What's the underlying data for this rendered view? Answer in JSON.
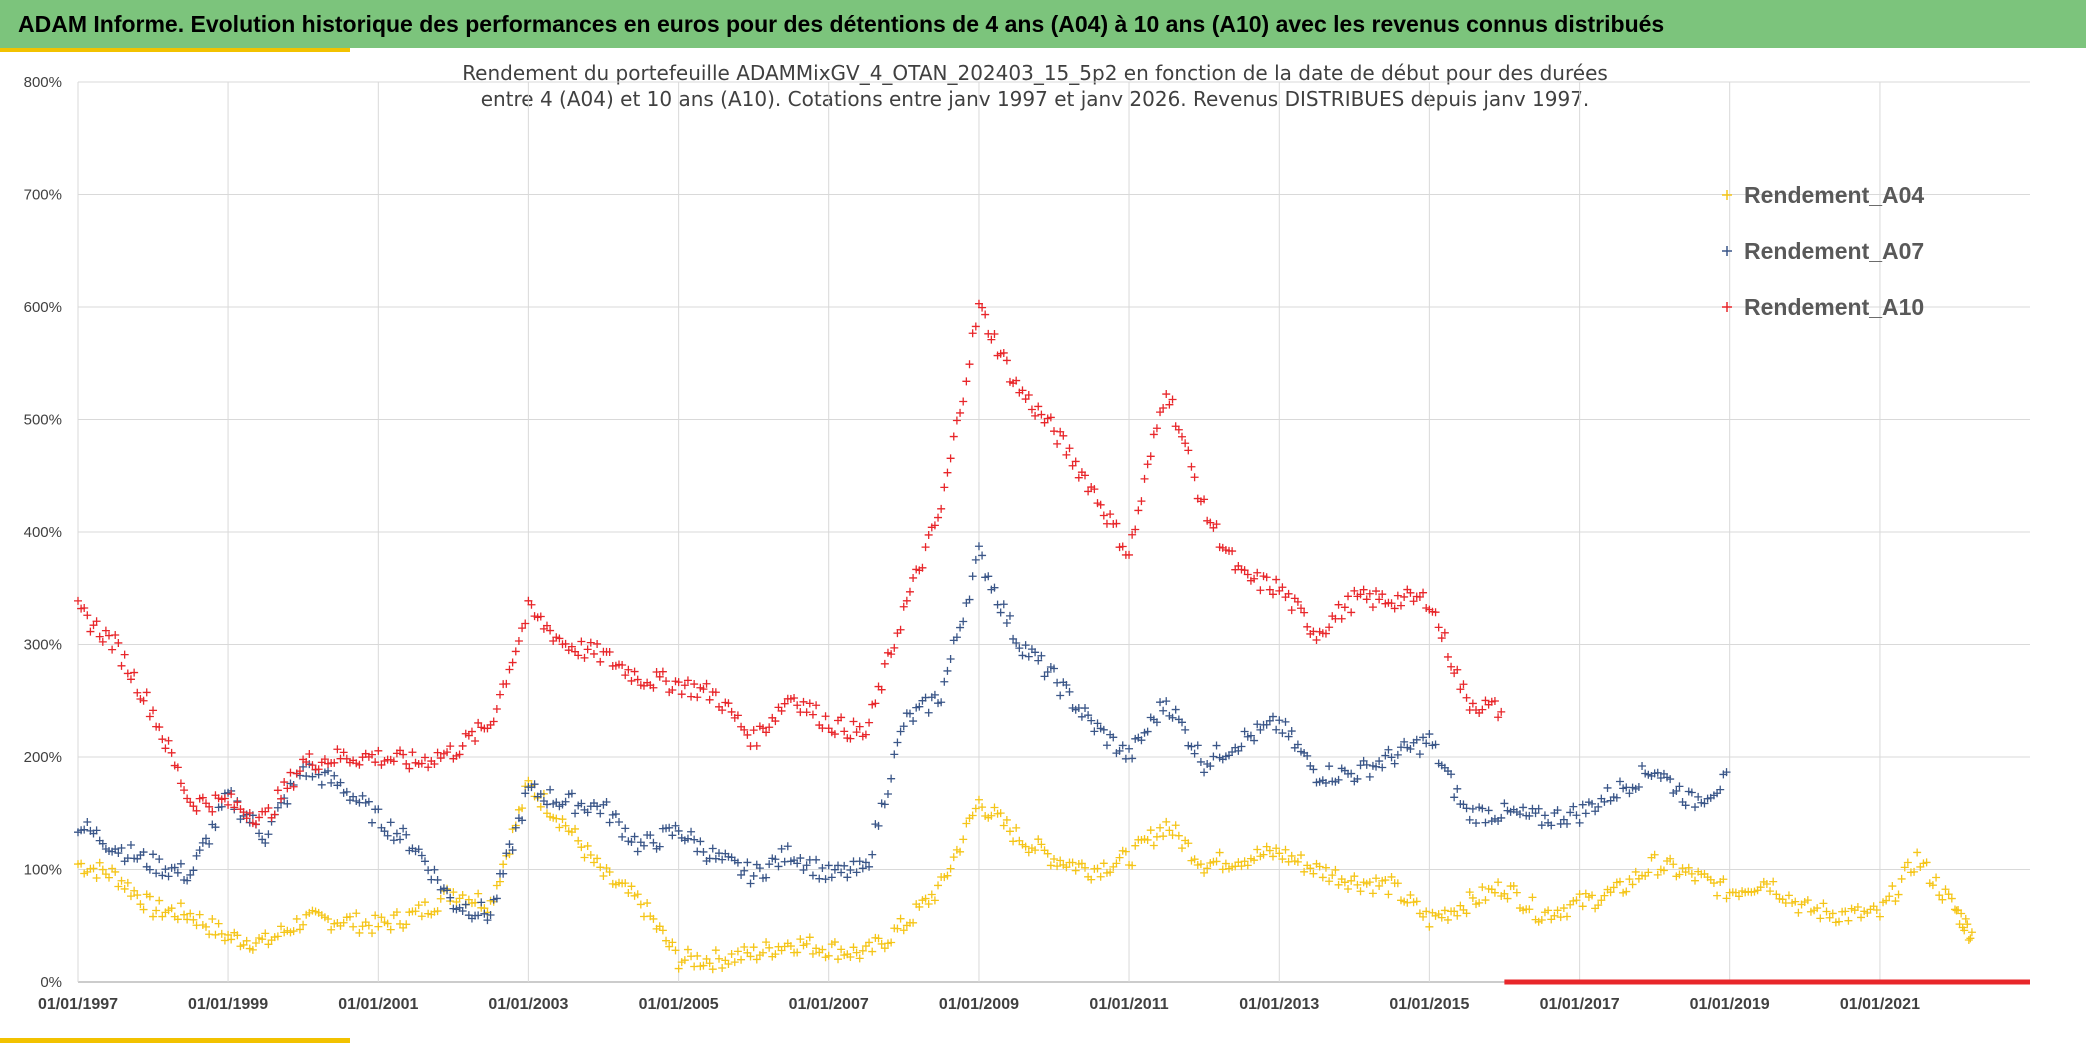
{
  "header": {
    "title": "ADAM Informe. Evolution historique des performances en euros pour des détentions de 4 ans (A04) à 10 ans (A10) avec les revenus connus distribués"
  },
  "colors": {
    "header_bg": "#7cc47c",
    "accent": "#f2c200",
    "A04": "#f5c518",
    "A07": "#3a5688",
    "A10": "#e8262a"
  },
  "chart_data": {
    "type": "scatter",
    "title_lines": [
      "Rendement du portefeuille ADAMMixGV_4_OTAN_202403_15_5p2  en fonction de la date de début pour des durées",
      "entre 4 (A04) et 10 ans (A10). Cotations entre janv 1997 et janv 2026. Revenus DISTRIBUES depuis janv 1997."
    ],
    "xlabel": "",
    "ylabel": "",
    "x_range": [
      "1997-01-01",
      "2022-12-31"
    ],
    "ylim": [
      0,
      800
    ],
    "y_ticks": [
      0,
      100,
      200,
      300,
      400,
      500,
      600,
      700,
      800
    ],
    "y_tick_labels": [
      "0%",
      "100%",
      "200%",
      "300%",
      "400%",
      "500%",
      "600%",
      "700%",
      "800%"
    ],
    "x_tick_labels": [
      "01/01/1997",
      "01/01/1999",
      "01/01/2001",
      "01/01/2003",
      "01/01/2005",
      "01/01/2007",
      "01/01/2009",
      "01/01/2011",
      "01/01/2013",
      "01/01/2015",
      "01/01/2017",
      "01/01/2019",
      "01/01/2021"
    ],
    "grid": true,
    "legend_position": "top-right",
    "marker": "+",
    "series": [
      {
        "name": "Rendement_A04",
        "color": "#f5c518",
        "x": [
          "1997-01-01",
          "1997-07-01",
          "1998-01-01",
          "1998-07-01",
          "1999-01-01",
          "1999-07-01",
          "2000-01-01",
          "2000-07-01",
          "2001-01-01",
          "2001-07-01",
          "2002-01-01",
          "2002-07-01",
          "2003-01-01",
          "2003-07-01",
          "2004-01-01",
          "2004-07-01",
          "2005-01-01",
          "2005-07-01",
          "2006-01-01",
          "2006-07-01",
          "2007-01-01",
          "2007-07-01",
          "2008-01-01",
          "2008-07-01",
          "2009-01-01",
          "2009-07-01",
          "2010-01-01",
          "2010-07-01",
          "2011-01-01",
          "2011-07-01",
          "2012-01-01",
          "2012-07-01",
          "2013-01-01",
          "2013-07-01",
          "2014-01-01",
          "2014-07-01",
          "2015-01-01",
          "2015-07-01",
          "2016-01-01",
          "2016-07-01",
          "2017-01-01",
          "2017-07-01",
          "2018-01-01",
          "2018-07-01",
          "2019-01-01",
          "2019-07-01",
          "2020-01-01",
          "2020-07-01",
          "2021-01-01",
          "2021-07-01",
          "2022-01-01",
          "2022-04-01"
        ],
        "y": [
          105,
          95,
          65,
          60,
          40,
          35,
          55,
          55,
          50,
          60,
          80,
          70,
          175,
          140,
          95,
          70,
          20,
          20,
          25,
          35,
          30,
          25,
          50,
          85,
          160,
          130,
          110,
          100,
          110,
          140,
          105,
          110,
          115,
          100,
          90,
          85,
          55,
          70,
          85,
          60,
          70,
          80,
          105,
          95,
          80,
          90,
          65,
          60,
          60,
          110,
          65,
          40
        ]
      },
      {
        "name": "Rendement_A07",
        "color": "#3a5688",
        "x": [
          "1997-01-01",
          "1997-07-01",
          "1998-01-01",
          "1998-07-01",
          "1999-01-01",
          "1999-07-01",
          "2000-01-01",
          "2000-07-01",
          "2001-01-01",
          "2001-07-01",
          "2002-01-01",
          "2002-07-01",
          "2003-01-01",
          "2003-07-01",
          "2004-01-01",
          "2004-07-01",
          "2005-01-01",
          "2005-07-01",
          "2006-01-01",
          "2006-07-01",
          "2007-01-01",
          "2007-07-01",
          "2008-01-01",
          "2008-07-01",
          "2009-01-01",
          "2009-07-01",
          "2010-01-01",
          "2010-07-01",
          "2011-01-01",
          "2011-07-01",
          "2012-01-01",
          "2012-07-01",
          "2013-01-01",
          "2013-07-01",
          "2014-01-01",
          "2014-07-01",
          "2015-01-01",
          "2015-07-01",
          "2016-01-01",
          "2016-07-01",
          "2017-01-01",
          "2017-07-01",
          "2018-01-01",
          "2018-07-01",
          "2019-01-01"
        ],
        "y": [
          140,
          120,
          105,
          95,
          165,
          130,
          190,
          175,
          145,
          120,
          70,
          60,
          170,
          160,
          155,
          120,
          135,
          110,
          95,
          115,
          95,
          100,
          230,
          255,
          380,
          305,
          270,
          230,
          200,
          250,
          195,
          215,
          230,
          185,
          185,
          200,
          215,
          150,
          150,
          145,
          150,
          170,
          190,
          160,
          180
        ]
      },
      {
        "name": "Rendement_A10",
        "color": "#e8262a",
        "x": [
          "1997-01-01",
          "1997-07-01",
          "1998-01-01",
          "1998-07-01",
          "1999-01-01",
          "1999-07-01",
          "2000-01-01",
          "2000-07-01",
          "2001-01-01",
          "2001-07-01",
          "2002-01-01",
          "2002-07-01",
          "2003-01-01",
          "2003-07-01",
          "2004-01-01",
          "2004-07-01",
          "2005-01-01",
          "2005-07-01",
          "2006-01-01",
          "2006-07-01",
          "2007-01-01",
          "2007-07-01",
          "2008-01-01",
          "2008-07-01",
          "2009-01-01",
          "2009-07-01",
          "2010-01-01",
          "2010-07-01",
          "2011-01-01",
          "2011-07-01",
          "2012-01-01",
          "2012-07-01",
          "2013-01-01",
          "2013-07-01",
          "2014-01-01",
          "2014-07-01",
          "2015-01-01",
          "2015-07-01",
          "2016-01-01"
        ],
        "y": [
          330,
          300,
          240,
          160,
          160,
          145,
          195,
          200,
          200,
          195,
          205,
          230,
          330,
          300,
          290,
          270,
          265,
          255,
          215,
          255,
          230,
          220,
          330,
          420,
          600,
          530,
          490,
          440,
          380,
          530,
          420,
          360,
          350,
          310,
          340,
          340,
          340,
          250,
          240
        ]
      }
    ]
  }
}
